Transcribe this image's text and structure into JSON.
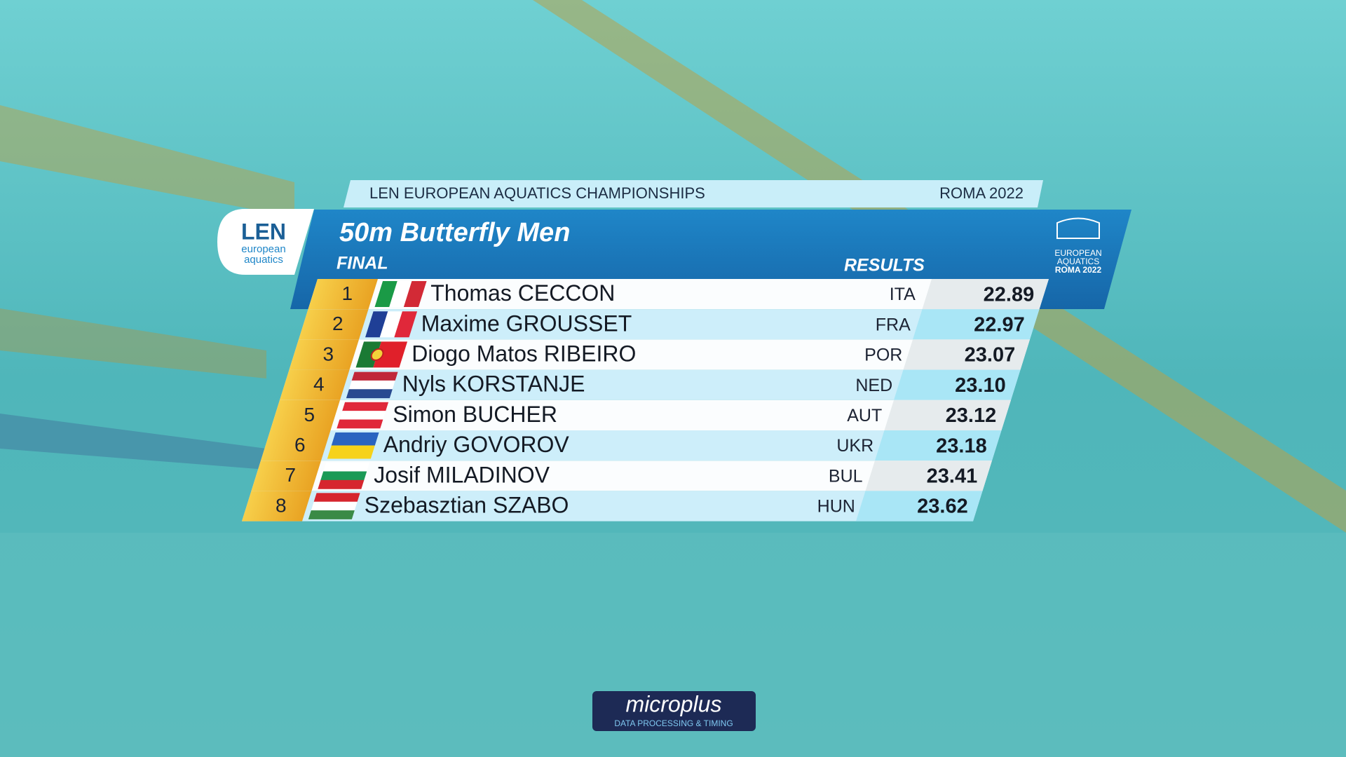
{
  "header": {
    "event": "LEN EUROPEAN AQUATICS CHAMPIONSHIPS",
    "edition": "ROMA 2022"
  },
  "logo": {
    "brand": "LEN",
    "line1": "european",
    "line2": "aquatics"
  },
  "title": "50m Butterfly Men",
  "phase": "FINAL",
  "results_label": "RESULTS",
  "emblem": {
    "line1": "EUROPEAN",
    "line2": "AQUATICS",
    "line3": "ROMA 2022"
  },
  "results": [
    {
      "rank": 1,
      "name": "Thomas CECCON",
      "country": "ITA",
      "time": "22.89"
    },
    {
      "rank": 2,
      "name": "Maxime GROUSSET",
      "country": "FRA",
      "time": "22.97"
    },
    {
      "rank": 3,
      "name": "Diogo Matos RIBEIRO",
      "country": "POR",
      "time": "23.07"
    },
    {
      "rank": 4,
      "name": "Nyls KORSTANJE",
      "country": "NED",
      "time": "23.10"
    },
    {
      "rank": 5,
      "name": "Simon BUCHER",
      "country": "AUT",
      "time": "23.12"
    },
    {
      "rank": 6,
      "name": "Andriy GOVOROV",
      "country": "UKR",
      "time": "23.18"
    },
    {
      "rank": 7,
      "name": "Josif MILADINOV",
      "country": "BUL",
      "time": "23.41"
    },
    {
      "rank": 8,
      "name": "Szebasztian SZABO",
      "country": "HUN",
      "time": "23.62"
    }
  ],
  "sponsor": {
    "name": "microplus",
    "tagline": "DATA PROCESSING & TIMING"
  }
}
